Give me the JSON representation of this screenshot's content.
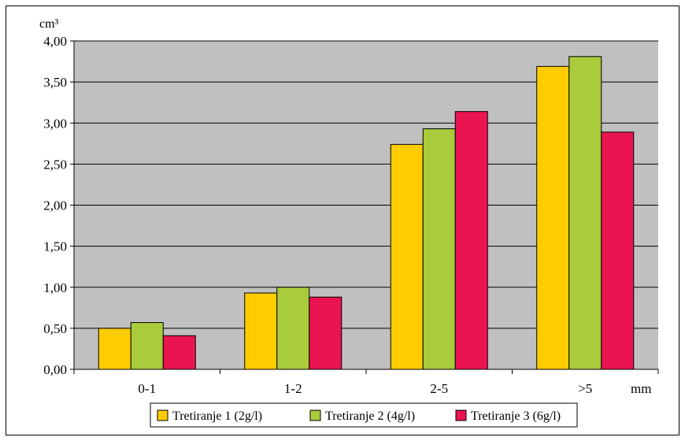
{
  "chart_data": {
    "type": "bar",
    "ylabel": "cm³",
    "xlabel": "mm",
    "ylim": [
      0,
      4
    ],
    "yticks": [
      "0,00",
      "0,50",
      "1,00",
      "1,50",
      "2,00",
      "2,50",
      "3,00",
      "3,50",
      "4,00"
    ],
    "grid": true,
    "legend_position": "bottom",
    "categories": [
      "0-1",
      "1-2",
      "2-5",
      ">5"
    ],
    "series": [
      {
        "name": "Tretiranje 1 (2g/l)",
        "color": "#FFCC00",
        "values": [
          0.5,
          0.93,
          2.74,
          3.69
        ]
      },
      {
        "name": "Tretiranje 2 (4g/l)",
        "color": "#A8CC3C",
        "values": [
          0.57,
          1.0,
          2.93,
          3.81
        ]
      },
      {
        "name": "Tretiranje 3 (6g/l)",
        "color": "#EA1550",
        "values": [
          0.41,
          0.88,
          3.14,
          2.89
        ]
      }
    ],
    "plot_background": "#C0C0C0"
  }
}
